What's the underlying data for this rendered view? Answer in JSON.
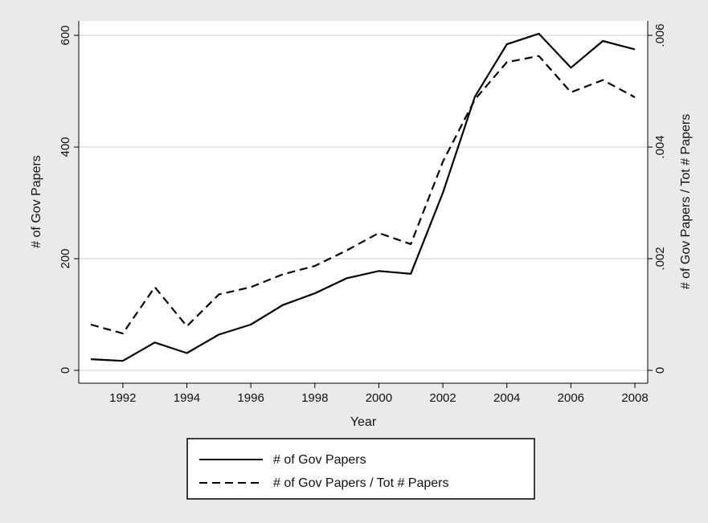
{
  "chart_data": {
    "type": "line",
    "xlabel": "Year",
    "ylabel_left": "# of Gov Papers",
    "ylabel_right": "# of Gov Papers / Tot # Papers",
    "x": [
      1991,
      1992,
      1993,
      1994,
      1995,
      1996,
      1997,
      1998,
      1999,
      2000,
      2001,
      2002,
      2003,
      2004,
      2005,
      2006,
      2007,
      2008
    ],
    "xlim": [
      1991,
      2008
    ],
    "x_ticks": [
      1992,
      1994,
      1996,
      1998,
      2000,
      2002,
      2004,
      2006,
      2008
    ],
    "ylim_left": [
      0,
      600
    ],
    "y_ticks_left": [
      "0",
      "200",
      "400",
      "600"
    ],
    "ylim_right": [
      0,
      0.006
    ],
    "y_ticks_right": [
      "0",
      ".002",
      ".004",
      ".006"
    ],
    "grid": true,
    "legend_position": "bottom",
    "series": [
      {
        "name": "# of Gov Papers",
        "axis": "left",
        "line_style": "solid",
        "values": [
          20,
          17,
          50,
          31,
          64,
          82,
          117,
          138,
          165,
          178,
          173,
          318,
          490,
          584,
          603,
          542,
          590,
          575
        ]
      },
      {
        "name": "# of Gov Papers / Tot # Papers",
        "axis": "right",
        "line_style": "dashed",
        "values": [
          0.00082,
          0.00066,
          0.00149,
          0.00079,
          0.00136,
          0.00149,
          0.00172,
          0.00187,
          0.00215,
          0.00246,
          0.00226,
          0.00374,
          0.00485,
          0.00552,
          0.00563,
          0.00498,
          0.0052,
          0.00489
        ]
      }
    ],
    "colors": {
      "background": "#eaeaea",
      "plot_background": "#ffffff",
      "grid": "#e6e6e6",
      "line": "#000000"
    }
  }
}
